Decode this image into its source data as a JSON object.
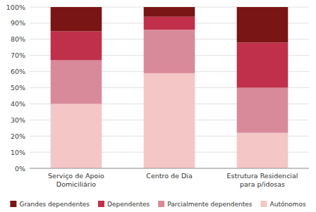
{
  "chart_data": {
    "type": "bar",
    "stacked": true,
    "categories": [
      "Serviço de Apoio\nDomiciliário",
      "Centro de Dia",
      "Estrutura Residencial\npara p/idosas"
    ],
    "series": [
      {
        "name": "Autónomos",
        "color": "#f5c6c6",
        "values": [
          40,
          59,
          22
        ]
      },
      {
        "name": "Parcialmente dependentes",
        "color": "#d98a9a",
        "values": [
          27,
          27,
          28
        ]
      },
      {
        "name": "Dependentes",
        "color": "#c0304a",
        "values": [
          18,
          8,
          28
        ]
      },
      {
        "name": "Grandes dependentes",
        "color": "#7a1515",
        "values": [
          15,
          6,
          22
        ]
      }
    ],
    "ylim": [
      0,
      100
    ],
    "yticks": [
      {
        "value": 0,
        "label": "0%"
      },
      {
        "value": 10,
        "label": "10%"
      },
      {
        "value": 20,
        "label": "20%"
      },
      {
        "value": 30,
        "label": "30%"
      },
      {
        "value": 40,
        "label": "40%"
      },
      {
        "value": 50,
        "label": "50%"
      },
      {
        "value": 60,
        "label": "60%"
      },
      {
        "value": 70,
        "label": "70%"
      },
      {
        "value": 80,
        "label": "80%"
      },
      {
        "value": 90,
        "label": "90%"
      },
      {
        "value": 100,
        "label": "100%"
      }
    ],
    "grid": true,
    "legend": "bottom"
  }
}
